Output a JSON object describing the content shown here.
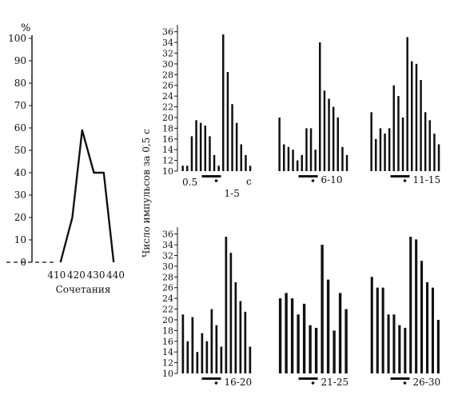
{
  "chart_data": [
    {
      "type": "line",
      "ylabel": "%",
      "xlabel": "Сочетания",
      "x_ticks": [
        "410",
        "420",
        "430",
        "440"
      ],
      "y_ticks": [
        "0",
        "10",
        "20",
        "30",
        "40",
        "50",
        "60",
        "70",
        "80",
        "90",
        "100"
      ],
      "xlim": [
        404,
        443
      ],
      "ylim": [
        0,
        100
      ],
      "x": [
        412,
        418,
        423,
        429,
        434,
        439
      ],
      "y": [
        0,
        20,
        59,
        40,
        40,
        0
      ]
    },
    {
      "type": "bar",
      "ylabel": "Число импульсов за 0,5 с",
      "y_ticks": [
        "10",
        "12",
        "14",
        "16",
        "18",
        "20",
        "22",
        "24",
        "26",
        "28",
        "30",
        "32",
        "34",
        "36"
      ],
      "ylim": [
        10,
        37
      ],
      "panels": [
        {
          "label": "1-5",
          "extra_ticks": [
            "0.5",
            "с"
          ],
          "values": [
            11,
            11,
            16.5,
            19.5,
            19,
            18.5,
            16.5,
            13,
            11,
            35.5,
            28.5,
            22.5,
            19,
            15,
            13,
            11
          ]
        },
        {
          "label": "6-10",
          "values": [
            20,
            15,
            14.5,
            14,
            12,
            13,
            18,
            18,
            14,
            34,
            25,
            23.5,
            22,
            20,
            14.5,
            13
          ]
        },
        {
          "label": "11-15",
          "values": [
            21,
            16,
            18,
            17,
            18,
            26,
            24,
            20,
            35,
            30.5,
            30,
            27,
            21,
            19.5,
            17,
            15
          ]
        },
        {
          "label": "16-20",
          "values": [
            21,
            16,
            20.5,
            14,
            17.5,
            16,
            22,
            19,
            15,
            35.5,
            32.5,
            27,
            23.5,
            21.5,
            15
          ]
        },
        {
          "label": "21-25",
          "values": [
            24,
            25,
            24,
            21,
            23,
            19,
            18.5,
            34,
            27.5,
            18,
            25,
            22
          ]
        },
        {
          "label": "26-30",
          "values": [
            28,
            26,
            26,
            21,
            21,
            19,
            18.5,
            35.5,
            35,
            31,
            27,
            26,
            20
          ]
        }
      ]
    }
  ]
}
